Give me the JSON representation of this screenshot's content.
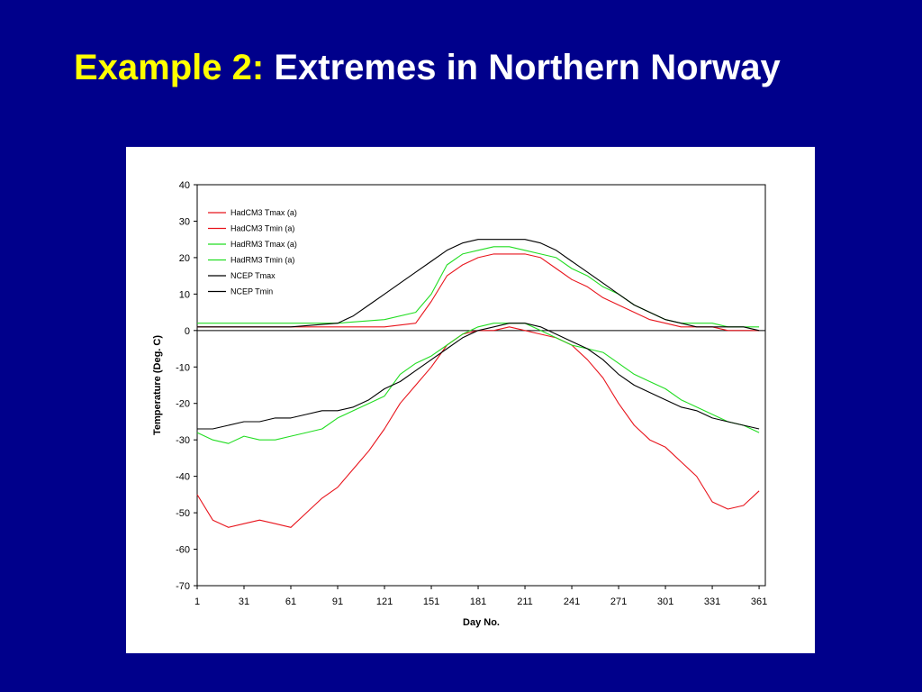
{
  "slide": {
    "title_accent": "Example 2:",
    "title_rest": " Extremes in Northern Norway"
  },
  "colors": {
    "background": "#00008b",
    "title_accent": "#ffff00",
    "title_text": "#ffffff",
    "hadcm3": "#e8141c",
    "hadrm3": "#22dd22",
    "ncep": "#000000"
  },
  "chart_data": {
    "type": "line",
    "title": "",
    "xlabel": "Day No.",
    "ylabel": "Temperature (Deg. C)",
    "xlim": [
      1,
      365
    ],
    "ylim": [
      -70,
      40
    ],
    "xticks": [
      1,
      31,
      61,
      91,
      121,
      151,
      181,
      211,
      241,
      271,
      301,
      331,
      361
    ],
    "yticks": [
      40,
      30,
      20,
      10,
      0,
      -10,
      -20,
      -30,
      -40,
      -50,
      -60,
      -70
    ],
    "grid": false,
    "legend_position": "top-left",
    "series": [
      {
        "name": "HadCM3 Tmax (a)",
        "color": "#e8141c",
        "x": [
          1,
          31,
          61,
          91,
          121,
          141,
          151,
          161,
          171,
          181,
          191,
          201,
          211,
          221,
          231,
          241,
          251,
          261,
          271,
          281,
          291,
          301,
          311,
          321,
          331,
          341,
          351,
          361
        ],
        "y": [
          1,
          1,
          1,
          1,
          1,
          2,
          8,
          15,
          18,
          20,
          21,
          21,
          21,
          20,
          17,
          14,
          12,
          9,
          7,
          5,
          3,
          2,
          1,
          1,
          1,
          0,
          0,
          0
        ]
      },
      {
        "name": "HadCM3 Tmin (a)",
        "color": "#e8141c",
        "x": [
          1,
          11,
          21,
          31,
          41,
          51,
          61,
          71,
          81,
          91,
          101,
          111,
          121,
          131,
          141,
          151,
          161,
          171,
          181,
          191,
          201,
          211,
          221,
          231,
          241,
          251,
          261,
          271,
          281,
          291,
          301,
          311,
          321,
          331,
          341,
          351,
          361
        ],
        "y": [
          -45,
          -52,
          -54,
          -53,
          -52,
          -53,
          -54,
          -50,
          -46,
          -43,
          -38,
          -33,
          -27,
          -20,
          -15,
          -10,
          -4,
          -1,
          0,
          0,
          1,
          0,
          -1,
          -2,
          -4,
          -8,
          -13,
          -20,
          -26,
          -30,
          -32,
          -36,
          -40,
          -47,
          -49,
          -48,
          -44
        ]
      },
      {
        "name": "HadRM3 Tmax (a)",
        "color": "#22dd22",
        "x": [
          1,
          31,
          61,
          91,
          121,
          141,
          151,
          161,
          171,
          181,
          191,
          201,
          211,
          221,
          231,
          241,
          251,
          261,
          271,
          281,
          291,
          301,
          311,
          321,
          331,
          341,
          351,
          361
        ],
        "y": [
          2,
          2,
          2,
          2,
          3,
          5,
          10,
          18,
          21,
          22,
          23,
          23,
          22,
          21,
          20,
          17,
          15,
          12,
          10,
          7,
          5,
          3,
          2,
          2,
          2,
          1,
          1,
          1
        ]
      },
      {
        "name": "HadRM3 Tmin (a)",
        "color": "#22dd22",
        "x": [
          1,
          11,
          21,
          31,
          41,
          51,
          61,
          71,
          81,
          91,
          101,
          111,
          121,
          131,
          141,
          151,
          161,
          171,
          181,
          191,
          201,
          211,
          221,
          231,
          241,
          251,
          261,
          271,
          281,
          291,
          301,
          311,
          321,
          331,
          341,
          351,
          361
        ],
        "y": [
          -28,
          -30,
          -31,
          -29,
          -30,
          -30,
          -29,
          -28,
          -27,
          -24,
          -22,
          -20,
          -18,
          -12,
          -9,
          -7,
          -4,
          -1,
          1,
          2,
          2,
          2,
          0,
          -2,
          -4,
          -5,
          -6,
          -9,
          -12,
          -14,
          -16,
          -19,
          -21,
          -23,
          -25,
          -26,
          -28
        ]
      },
      {
        "name": "NCEP Tmax",
        "color": "#000000",
        "x": [
          1,
          31,
          61,
          91,
          101,
          111,
          121,
          131,
          141,
          151,
          161,
          171,
          181,
          191,
          201,
          211,
          221,
          231,
          241,
          251,
          261,
          271,
          281,
          291,
          301,
          311,
          321,
          331,
          341,
          351,
          361
        ],
        "y": [
          1,
          1,
          1,
          2,
          4,
          7,
          10,
          13,
          16,
          19,
          22,
          24,
          25,
          25,
          25,
          25,
          24,
          22,
          19,
          16,
          13,
          10,
          7,
          5,
          3,
          2,
          1,
          1,
          1,
          1,
          0
        ]
      },
      {
        "name": "NCEP Tmin",
        "color": "#000000",
        "x": [
          1,
          11,
          21,
          31,
          41,
          51,
          61,
          71,
          81,
          91,
          101,
          111,
          121,
          131,
          141,
          151,
          161,
          171,
          181,
          191,
          201,
          211,
          221,
          231,
          241,
          251,
          261,
          271,
          281,
          291,
          301,
          311,
          321,
          331,
          341,
          351,
          361
        ],
        "y": [
          -27,
          -27,
          -26,
          -25,
          -25,
          -24,
          -24,
          -23,
          -22,
          -22,
          -21,
          -19,
          -16,
          -14,
          -11,
          -8,
          -5,
          -2,
          0,
          1,
          2,
          2,
          1,
          -1,
          -3,
          -5,
          -8,
          -12,
          -15,
          -17,
          -19,
          -21,
          -22,
          -24,
          -25,
          -26,
          -27
        ]
      }
    ]
  }
}
